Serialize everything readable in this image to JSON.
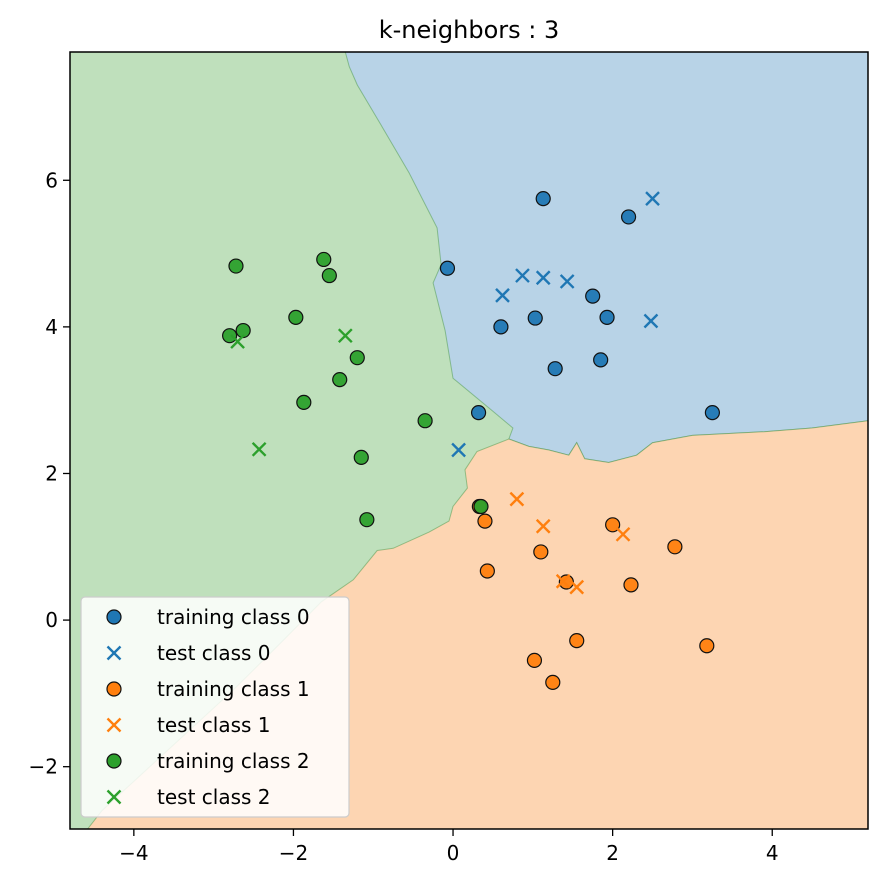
{
  "chart_data": {
    "type": "scatter",
    "title": "k-neighbors : 3",
    "xlabel": "",
    "ylabel": "",
    "xlim": [
      -4.8,
      5.2
    ],
    "ylim": [
      -2.85,
      7.75
    ],
    "xticks": [
      -4,
      -2,
      0,
      2,
      4
    ],
    "yticks": [
      -2,
      0,
      2,
      4,
      6
    ],
    "xtick_labels": [
      "−4",
      "−2",
      "0",
      "2",
      "4"
    ],
    "ytick_labels": [
      "−2",
      "0",
      "2",
      "4",
      "6"
    ],
    "grid": false,
    "legend_position": "lower-left",
    "regions": [
      {
        "class": 0,
        "color": "#b8d3e7",
        "polygon": [
          [
            -1.35,
            7.75
          ],
          [
            5.2,
            7.75
          ],
          [
            5.2,
            2.72
          ],
          [
            4.5,
            2.62
          ],
          [
            3.9,
            2.57
          ],
          [
            3.0,
            2.52
          ],
          [
            2.5,
            2.42
          ],
          [
            2.3,
            2.25
          ],
          [
            1.95,
            2.15
          ],
          [
            1.65,
            2.2
          ],
          [
            1.55,
            2.42
          ],
          [
            1.45,
            2.25
          ],
          [
            1.2,
            2.32
          ],
          [
            0.95,
            2.37
          ],
          [
            0.7,
            2.47
          ],
          [
            0.75,
            2.62
          ],
          [
            0.5,
            2.85
          ],
          [
            0.0,
            3.3
          ],
          [
            -0.1,
            3.95
          ],
          [
            -0.25,
            4.6
          ],
          [
            -0.15,
            4.85
          ],
          [
            -0.2,
            5.35
          ],
          [
            -0.55,
            6.1
          ],
          [
            -0.9,
            6.75
          ],
          [
            -1.2,
            7.3
          ],
          [
            -1.3,
            7.55
          ]
        ]
      },
      {
        "class": 1,
        "color": "#fdd5b2",
        "polygon": [
          [
            -4.58,
            -2.85
          ],
          [
            5.2,
            -2.85
          ],
          [
            5.2,
            2.72
          ],
          [
            4.5,
            2.62
          ],
          [
            3.9,
            2.57
          ],
          [
            3.0,
            2.52
          ],
          [
            2.5,
            2.42
          ],
          [
            2.3,
            2.25
          ],
          [
            1.95,
            2.15
          ],
          [
            1.65,
            2.2
          ],
          [
            1.55,
            2.42
          ],
          [
            1.45,
            2.25
          ],
          [
            1.2,
            2.32
          ],
          [
            0.95,
            2.37
          ],
          [
            0.7,
            2.47
          ],
          [
            0.3,
            2.3
          ],
          [
            0.15,
            2.05
          ],
          [
            0.18,
            1.8
          ],
          [
            0.0,
            1.55
          ],
          [
            -0.05,
            1.35
          ],
          [
            -0.3,
            1.2
          ],
          [
            -0.75,
            0.98
          ],
          [
            -0.95,
            0.95
          ],
          [
            -1.25,
            0.55
          ],
          [
            -1.65,
            0.25
          ],
          [
            -2.15,
            -0.3
          ],
          [
            -2.75,
            -0.95
          ],
          [
            -3.35,
            -1.55
          ],
          [
            -3.95,
            -2.15
          ],
          [
            -4.4,
            -2.6
          ]
        ]
      }
    ],
    "background_color": "#bfe0bc",
    "series": [
      {
        "name": "training class 0",
        "marker": "circle",
        "color": "#1f77b4",
        "x": [
          1.13,
          2.2,
          -0.07,
          0.6,
          1.03,
          1.75,
          1.93,
          1.28,
          1.85,
          3.25,
          0.32
        ],
        "y": [
          5.75,
          5.5,
          4.8,
          4.0,
          4.12,
          4.42,
          4.13,
          3.43,
          3.55,
          2.83,
          2.83
        ]
      },
      {
        "name": "test class 0",
        "marker": "x",
        "color": "#1f77b4",
        "x": [
          2.5,
          0.87,
          1.13,
          1.43,
          0.62,
          2.48,
          0.07
        ],
        "y": [
          5.75,
          4.7,
          4.67,
          4.62,
          4.43,
          4.08,
          2.32
        ]
      },
      {
        "name": "training class 1",
        "marker": "circle",
        "color": "#ff7f0e",
        "x": [
          0.4,
          2.0,
          1.1,
          2.78,
          0.43,
          1.42,
          2.23,
          1.55,
          1.02,
          3.18,
          1.25,
          0.33
        ],
        "y": [
          1.35,
          1.3,
          0.93,
          1.0,
          0.67,
          0.52,
          0.48,
          -0.28,
          -0.55,
          -0.35,
          -0.85,
          1.55
        ]
      },
      {
        "name": "test class 1",
        "marker": "x",
        "color": "#ff7f0e",
        "x": [
          0.8,
          1.13,
          2.13,
          1.38,
          1.55
        ],
        "y": [
          1.65,
          1.28,
          1.17,
          0.53,
          0.45
        ]
      },
      {
        "name": "training class 2",
        "marker": "circle",
        "color": "#2ca02c",
        "x": [
          -2.72,
          -1.62,
          -1.55,
          -1.97,
          -2.63,
          -2.8,
          -1.2,
          -1.42,
          -1.87,
          -0.35,
          -1.15,
          -1.08,
          0.35
        ],
        "y": [
          4.83,
          4.92,
          4.7,
          4.13,
          3.95,
          3.88,
          3.58,
          3.28,
          2.97,
          2.72,
          2.22,
          1.37,
          1.55
        ]
      },
      {
        "name": "test class 2",
        "marker": "x",
        "color": "#2ca02c",
        "x": [
          -2.7,
          -1.35,
          -2.43
        ],
        "y": [
          3.8,
          3.88,
          2.33
        ]
      }
    ]
  },
  "legend": {
    "items": [
      {
        "label": "training class 0",
        "marker": "circle",
        "color": "#1f77b4"
      },
      {
        "label": "test class 0",
        "marker": "x",
        "color": "#1f77b4"
      },
      {
        "label": "training class 1",
        "marker": "circle",
        "color": "#ff7f0e"
      },
      {
        "label": "test class 1",
        "marker": "x",
        "color": "#ff7f0e"
      },
      {
        "label": "training class 2",
        "marker": "circle",
        "color": "#2ca02c"
      },
      {
        "label": "test class 2",
        "marker": "x",
        "color": "#2ca02c"
      }
    ]
  }
}
